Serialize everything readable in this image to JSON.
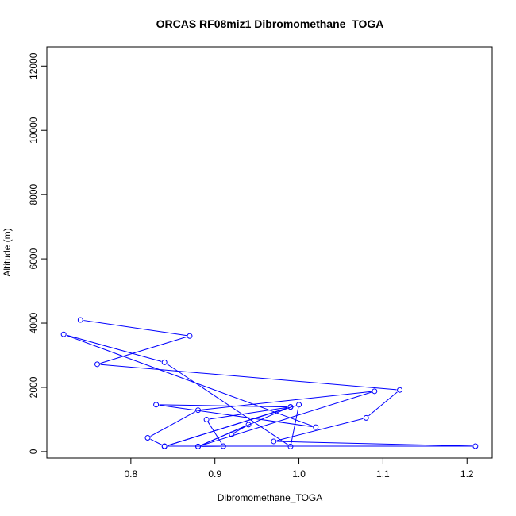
{
  "chart_data": {
    "type": "line",
    "title": "ORCAS RF08miz1 Dibromomethane_TOGA",
    "xlabel": "Dibromomethane_TOGA",
    "ylabel": "Altitude (m)",
    "xlim": [
      0.7,
      1.23
    ],
    "ylim": [
      -200,
      12600
    ],
    "x_ticks": [
      0.8,
      0.9,
      1.0,
      1.1,
      1.2
    ],
    "x_tick_labels": [
      "0.8",
      "0.9",
      "1.0",
      "1.1",
      "1.2"
    ],
    "y_ticks": [
      0,
      2000,
      4000,
      6000,
      8000,
      10000,
      12000
    ],
    "y_tick_labels": [
      "0",
      "2000",
      "4000",
      "6000",
      "8000",
      "10000",
      "12000"
    ],
    "series": [
      {
        "color": "#0000ff",
        "marker": "open-circle",
        "points": [
          {
            "x": 0.74,
            "y": 4100
          },
          {
            "x": 0.87,
            "y": 3600
          },
          {
            "x": 0.76,
            "y": 2720
          },
          {
            "x": 1.12,
            "y": 1920
          },
          {
            "x": 1.08,
            "y": 1050
          },
          {
            "x": 0.97,
            "y": 320
          },
          {
            "x": 1.21,
            "y": 170
          },
          {
            "x": 0.84,
            "y": 170
          },
          {
            "x": 0.82,
            "y": 430
          },
          {
            "x": 0.88,
            "y": 1290
          },
          {
            "x": 1.09,
            "y": 1880
          },
          {
            "x": 0.88,
            "y": 160
          },
          {
            "x": 0.99,
            "y": 1390
          },
          {
            "x": 0.83,
            "y": 1460
          },
          {
            "x": 1.02,
            "y": 760
          },
          {
            "x": 0.72,
            "y": 3650
          },
          {
            "x": 0.84,
            "y": 2780
          },
          {
            "x": 0.99,
            "y": 160
          },
          {
            "x": 1.0,
            "y": 1460
          },
          {
            "x": 0.84,
            "y": 160
          },
          {
            "x": 0.99,
            "y": 1390
          },
          {
            "x": 0.89,
            "y": 1000
          },
          {
            "x": 0.91,
            "y": 170
          },
          {
            "x": 0.88,
            "y": 160
          },
          {
            "x": 0.94,
            "y": 840
          },
          {
            "x": 0.92,
            "y": 540
          }
        ]
      }
    ]
  }
}
